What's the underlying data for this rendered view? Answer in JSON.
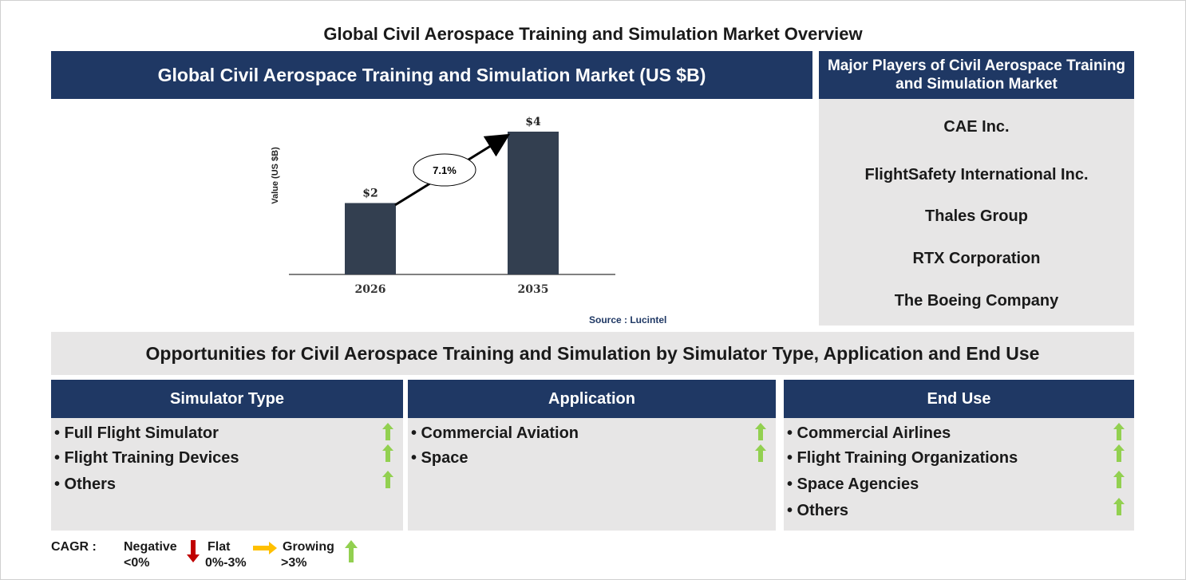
{
  "title": "Global Civil Aerospace Training and Simulation Market Overview",
  "chart_panel": {
    "header": "Global Civil Aerospace Training and Simulation Market (US $B)",
    "source": "Source : Lucintel",
    "cagr_label": "7.1%"
  },
  "chart_data": {
    "type": "bar",
    "categories": [
      "2026",
      "2035"
    ],
    "values": [
      2,
      4
    ],
    "value_labels": [
      "$2",
      "$4"
    ],
    "ylabel": "Value (US $B)",
    "xlabel": "",
    "title": "",
    "bar_color": "#333f50"
  },
  "players": {
    "header": "Major Players of Civil Aerospace Training and Simulation Market",
    "items": [
      "CAE Inc.",
      "FlightSafety International Inc.",
      "Thales Group",
      "RTX Corporation",
      "The Boeing Company"
    ]
  },
  "opportunities": {
    "header": "Opportunities for Civil Aerospace Training and Simulation by Simulator Type, Application and End Use",
    "segments": [
      {
        "title": "Simulator Type",
        "items": [
          "• Full Flight Simulator",
          "• Flight Training Devices",
          "• Others"
        ]
      },
      {
        "title": "Application",
        "items": [
          "• Commercial Aviation",
          "• Space"
        ]
      },
      {
        "title": "End Use",
        "items": [
          "• Commercial Airlines",
          "• Flight Training Organizations",
          "• Space Agencies",
          "• Others"
        ]
      }
    ]
  },
  "legend": {
    "cagr": "CAGR :",
    "negative": "Negative",
    "negative_range": "<0%",
    "flat": "Flat",
    "flat_range": "0%-3%",
    "growing": "Growing",
    "growing_range": ">3%"
  },
  "colors": {
    "navy": "#1f3864",
    "grey_panel": "#e7e6e6",
    "growing_arrow": "#92d050",
    "negative_arrow": "#c00000",
    "flat_arrow": "#ffc000"
  }
}
